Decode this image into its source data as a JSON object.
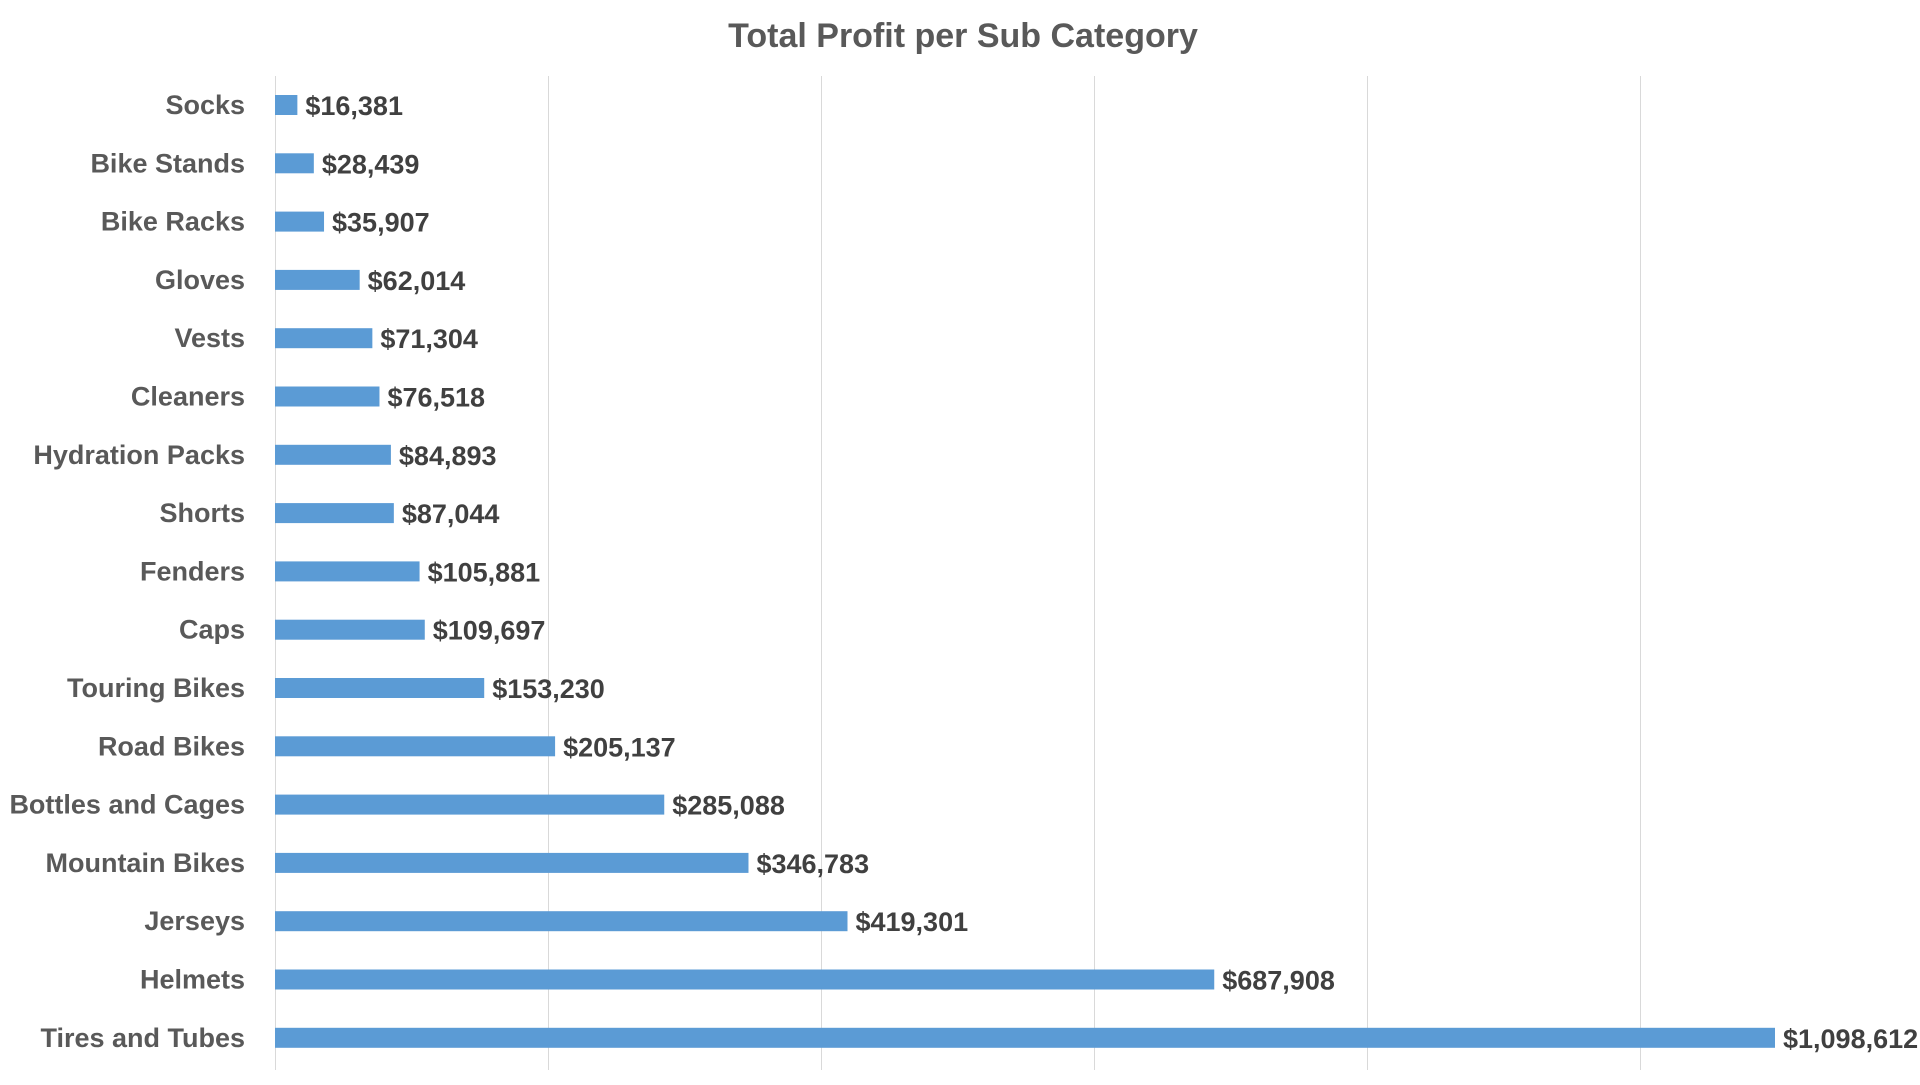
{
  "chart_data": {
    "type": "bar",
    "orientation": "horizontal",
    "title": "Total Profit per Sub Category",
    "xlabel": "",
    "ylabel": "",
    "xlim": [
      0,
      1100000
    ],
    "gridlines": [
      0,
      200000,
      400000,
      600000,
      800000,
      1000000
    ],
    "grid": true,
    "legend": "none",
    "bar_color": "#5B9BD5",
    "categories": [
      "Socks",
      "Bike Stands",
      "Bike Racks",
      "Gloves",
      "Vests",
      "Cleaners",
      "Hydration Packs",
      "Shorts",
      "Fenders",
      "Caps",
      "Touring Bikes",
      "Road Bikes",
      "Bottles and Cages",
      "Mountain Bikes",
      "Jerseys",
      "Helmets",
      "Tires and Tubes"
    ],
    "values": [
      16381,
      28439,
      35907,
      62014,
      71304,
      76518,
      84893,
      87044,
      105881,
      109697,
      153230,
      205137,
      285088,
      346783,
      419301,
      687908,
      1098612
    ],
    "data_labels": [
      "$16,381",
      "$28,439",
      "$35,907",
      "$62,014",
      "$71,304",
      "$76,518",
      "$84,893",
      "$87,044",
      "$105,881",
      "$109,697",
      "$153,230",
      "$205,137",
      "$285,088",
      "$346,783",
      "$419,301",
      "$687,908",
      "$1,098,612"
    ]
  }
}
